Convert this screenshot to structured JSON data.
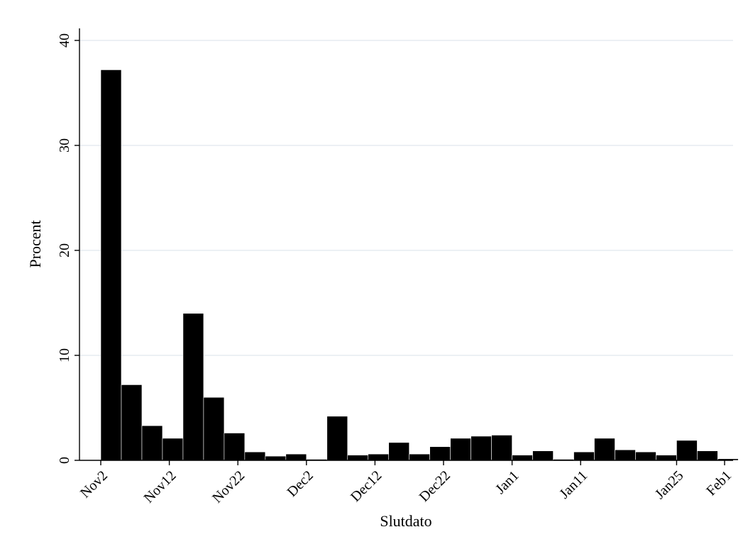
{
  "chart_data": {
    "type": "bar",
    "xlabel": "Slutdato",
    "ylabel": "Procent",
    "ylim": [
      0,
      40
    ],
    "yticks": [
      0,
      10,
      20,
      30,
      40
    ],
    "grid": true,
    "colors": {
      "bar": "#000000",
      "grid": "#e6ecf0",
      "axis": "#000000"
    },
    "x_start_date": "Nov2",
    "bin_width_days": 3,
    "bins": [
      {
        "start_day": 0,
        "value": 37.2
      },
      {
        "start_day": 3,
        "value": 7.2
      },
      {
        "start_day": 6,
        "value": 3.3
      },
      {
        "start_day": 9,
        "value": 2.1
      },
      {
        "start_day": 12,
        "value": 14.0
      },
      {
        "start_day": 15,
        "value": 6.0
      },
      {
        "start_day": 18,
        "value": 2.6
      },
      {
        "start_day": 21,
        "value": 0.8
      },
      {
        "start_day": 24,
        "value": 0.4
      },
      {
        "start_day": 27,
        "value": 0.6
      },
      {
        "start_day": 30,
        "value": 0.1
      },
      {
        "start_day": 33,
        "value": 4.2
      },
      {
        "start_day": 36,
        "value": 0.5
      },
      {
        "start_day": 39,
        "value": 0.6
      },
      {
        "start_day": 42,
        "value": 1.7
      },
      {
        "start_day": 45,
        "value": 0.6
      },
      {
        "start_day": 48,
        "value": 1.3
      },
      {
        "start_day": 51,
        "value": 2.1
      },
      {
        "start_day": 54,
        "value": 2.3
      },
      {
        "start_day": 57,
        "value": 2.4
      },
      {
        "start_day": 60,
        "value": 0.5
      },
      {
        "start_day": 63,
        "value": 0.9
      },
      {
        "start_day": 66,
        "value": 0.1
      },
      {
        "start_day": 69,
        "value": 0.8
      },
      {
        "start_day": 72,
        "value": 2.1
      },
      {
        "start_day": 75,
        "value": 1.0
      },
      {
        "start_day": 78,
        "value": 0.8
      },
      {
        "start_day": 81,
        "value": 0.5
      },
      {
        "start_day": 84,
        "value": 1.9
      },
      {
        "start_day": 87,
        "value": 0.9
      },
      {
        "start_day": 90,
        "value": 0.15
      }
    ],
    "xticks": [
      {
        "day": 0,
        "label": "Nov2"
      },
      {
        "day": 10,
        "label": "Nov12"
      },
      {
        "day": 20,
        "label": "Nov22"
      },
      {
        "day": 30,
        "label": "Dec2"
      },
      {
        "day": 40,
        "label": "Dec12"
      },
      {
        "day": 50,
        "label": "Dec22"
      },
      {
        "day": 60,
        "label": "Jan1"
      },
      {
        "day": 70,
        "label": "Jan11"
      },
      {
        "day": 84,
        "label": "Jan25"
      },
      {
        "day": 91,
        "label": "Feb1"
      }
    ]
  }
}
